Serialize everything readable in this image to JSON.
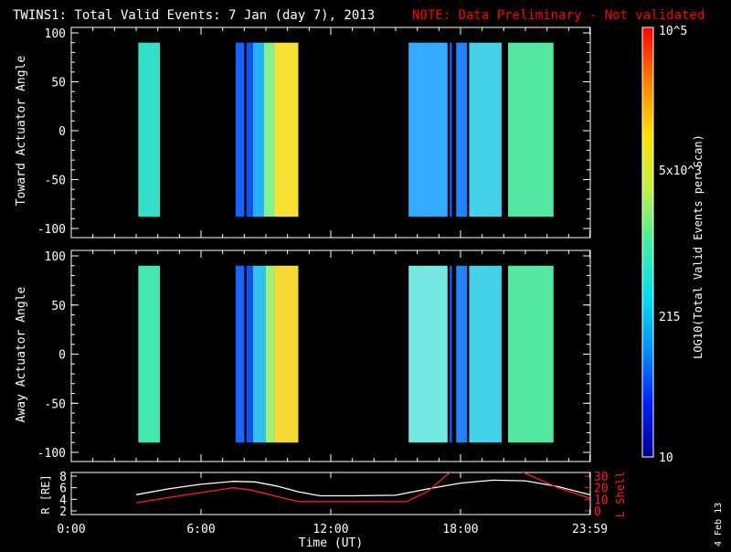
{
  "header": {
    "title": "TWINS1: Total Valid Events:  7 Jan (day   7), 2013",
    "note": "NOTE: Data Preliminary - Not validated",
    "note_color": "#ff0000"
  },
  "stamp": "4 Feb 13",
  "colorbar": {
    "label": "LOG10(Total Valid Events per Scan)",
    "ticks": [
      "10",
      "215",
      "5x10^3",
      "10^5"
    ],
    "colormap": [
      "#000090",
      "#0020ff",
      "#0090ff",
      "#00e0f0",
      "#40f0a0",
      "#c0f040",
      "#ffe000",
      "#ff8000",
      "#ff0000"
    ]
  },
  "chart_data": [
    {
      "type": "heatmap",
      "panel": "toward",
      "ylabel": "Toward Actuator Angle",
      "ylim": [
        -100,
        100
      ],
      "yticks": [
        "100",
        "50",
        "0",
        "-50",
        "-100"
      ],
      "xlim": [
        0,
        24
      ],
      "data_range_y": [
        -88,
        90
      ],
      "segments": [
        {
          "start": 3.1,
          "end": 4.1,
          "color": "#30e0c8"
        },
        {
          "start": 7.6,
          "end": 8.0,
          "color": "#1060ff"
        },
        {
          "start": 8.1,
          "end": 8.4,
          "color": "#0a50f0"
        },
        {
          "start": 8.4,
          "end": 8.9,
          "color": "#20b0ff"
        },
        {
          "start": 8.9,
          "end": 9.4,
          "color": "#80f090"
        },
        {
          "start": 9.4,
          "end": 10.5,
          "color": "#f8e030"
        },
        {
          "start": 15.6,
          "end": 17.4,
          "color": "#30a8ff"
        },
        {
          "start": 17.5,
          "end": 17.6,
          "color": "#1060ff"
        },
        {
          "start": 17.8,
          "end": 18.3,
          "color": "#2080ff"
        },
        {
          "start": 18.4,
          "end": 19.9,
          "color": "#40d0e8"
        },
        {
          "start": 20.2,
          "end": 22.3,
          "color": "#50e8a0"
        }
      ]
    },
    {
      "type": "heatmap",
      "panel": "away",
      "ylabel": "Away Actuator Angle",
      "ylim": [
        -100,
        100
      ],
      "yticks": [
        "100",
        "50",
        "0",
        "-50",
        "-100"
      ],
      "xlim": [
        0,
        24
      ],
      "data_range_y": [
        -90,
        90
      ],
      "segments": [
        {
          "start": 3.1,
          "end": 4.1,
          "color": "#40e8b0"
        },
        {
          "start": 7.6,
          "end": 8.0,
          "color": "#1860ff"
        },
        {
          "start": 8.1,
          "end": 8.4,
          "color": "#0a50f0"
        },
        {
          "start": 8.4,
          "end": 9.0,
          "color": "#30c0f0"
        },
        {
          "start": 9.0,
          "end": 9.4,
          "color": "#a0f070"
        },
        {
          "start": 9.4,
          "end": 10.5,
          "color": "#f8d830"
        },
        {
          "start": 15.6,
          "end": 17.4,
          "color": "#70e8e0"
        },
        {
          "start": 17.5,
          "end": 17.6,
          "color": "#1060ff"
        },
        {
          "start": 17.8,
          "end": 18.3,
          "color": "#2080ff"
        },
        {
          "start": 18.4,
          "end": 19.9,
          "color": "#40d0e8"
        },
        {
          "start": 20.2,
          "end": 22.3,
          "color": "#50e8a0"
        }
      ]
    },
    {
      "type": "line",
      "panel": "orbit",
      "xlabel": "Time (UT)",
      "xticks": [
        "0:00",
        "6:00",
        "12:00",
        "18:00",
        "23:59"
      ],
      "xtick_hours": [
        0,
        6,
        12,
        18,
        23.98
      ],
      "xlim": [
        0,
        24
      ],
      "ylabel": "R [RE]",
      "ylim": [
        2,
        8
      ],
      "yticks": [
        "2",
        "4",
        "6",
        "8"
      ],
      "y2label": "L Shell",
      "y2lim": [
        0,
        30
      ],
      "y2ticks": [
        "0",
        "10",
        "20",
        "30"
      ],
      "series": [
        {
          "name": "R [RE]",
          "axis": "left",
          "color": "#ffffff",
          "x": [
            3.0,
            4.5,
            6.0,
            7.5,
            8.5,
            9.5,
            10.5,
            11.5,
            13.0,
            15.0,
            16.5,
            18.0,
            19.5,
            21.0,
            22.5,
            23.98
          ],
          "y": [
            4.8,
            5.8,
            6.6,
            7.1,
            7.0,
            6.3,
            5.3,
            4.6,
            4.6,
            4.7,
            5.8,
            6.8,
            7.3,
            7.2,
            6.2,
            4.8
          ]
        },
        {
          "name": "L Shell",
          "axis": "right",
          "color": "#ff2020",
          "x": [
            3.0,
            5.0,
            7.5,
            8.3,
            10.5,
            11.5,
            15.5,
            16.5,
            17.3,
            17.6,
            20.8,
            21.3,
            22.5,
            23.98
          ],
          "y": [
            7,
            13,
            20,
            18,
            8,
            8,
            8,
            17,
            30,
            34,
            34,
            30,
            20,
            11
          ]
        }
      ]
    }
  ]
}
